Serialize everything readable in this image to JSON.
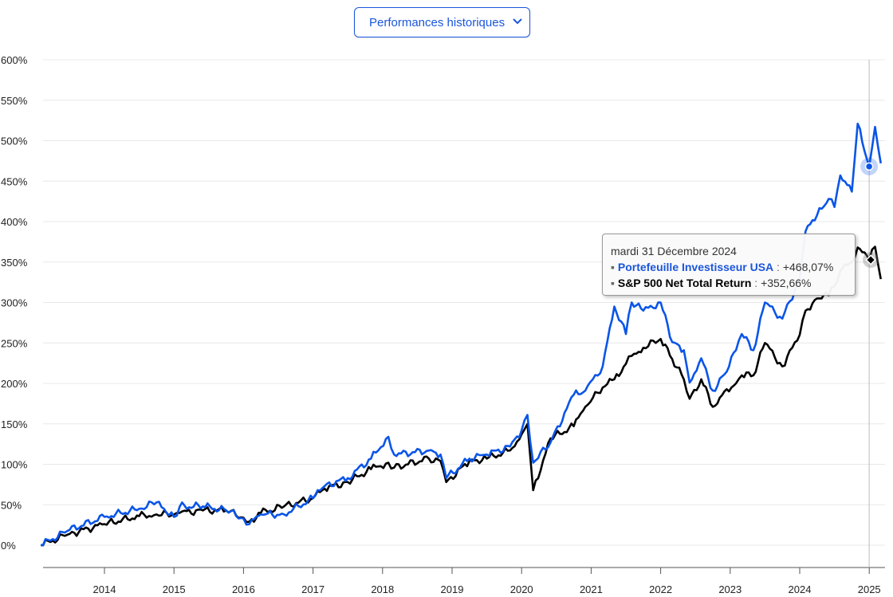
{
  "selector": {
    "selected": "Performances historiques",
    "icon": "chevron-down-icon"
  },
  "chart_data": {
    "type": "line",
    "title": "",
    "xlabel": "",
    "ylabel": "",
    "ylim": [
      -25,
      600
    ],
    "yticks": [
      "0%",
      "50%",
      "100%",
      "150%",
      "200%",
      "250%",
      "300%",
      "350%",
      "400%",
      "450%",
      "500%",
      "550%",
      "600%"
    ],
    "ytick_values": [
      0,
      50,
      100,
      150,
      200,
      250,
      300,
      350,
      400,
      450,
      500,
      550,
      600
    ],
    "xticks": [
      "2014",
      "2015",
      "2016",
      "2017",
      "2018",
      "2019",
      "2020",
      "2021",
      "2022",
      "2023",
      "2024",
      "2025"
    ],
    "xlim": [
      "2013-02",
      "2025-03"
    ],
    "grid": true,
    "x": [
      "2013-02",
      "2013-07",
      "2014-01",
      "2014-07",
      "2014-10",
      "2015-01",
      "2015-02",
      "2015-06",
      "2015-10",
      "2016-01",
      "2016-02",
      "2016-04",
      "2016-08",
      "2017-01",
      "2017-03",
      "2017-07",
      "2017-11",
      "2018-02",
      "2018-03",
      "2018-09",
      "2018-11",
      "2018-12",
      "2019-04",
      "2019-07",
      "2019-11",
      "2020-01",
      "2020-02",
      "2020-03",
      "2020-06",
      "2020-10",
      "2020-12",
      "2021-03",
      "2021-05",
      "2021-07",
      "2021-08",
      "2021-10",
      "2022-01",
      "2022-03",
      "2022-05",
      "2022-06",
      "2022-08",
      "2022-10",
      "2022-12",
      "2023-02",
      "2023-03",
      "2023-05",
      "2023-07",
      "2023-10",
      "2024-01",
      "2024-02",
      "2024-04",
      "2024-06",
      "2024-07",
      "2024-08",
      "2024-10",
      "2024-11",
      "2024-12-31",
      "2025-02",
      "2025-03"
    ],
    "series": [
      {
        "name": "Portefeuille Investisseur USA",
        "color": "#0a55e8",
        "values": [
          0,
          19,
          35,
          45,
          53,
          35,
          48,
          48,
          43,
          33,
          26,
          38,
          38,
          58,
          73,
          83,
          107,
          134,
          112,
          117,
          112,
          83,
          107,
          112,
          122,
          142,
          161,
          102,
          127,
          186,
          191,
          221,
          295,
          261,
          300,
          290,
          300,
          251,
          241,
          201,
          231,
          191,
          211,
          241,
          261,
          241,
          300,
          280,
          330,
          388,
          408,
          428,
          418,
          457,
          437,
          521,
          468.07,
          517,
          472
        ]
      },
      {
        "name": "S&P 500 Net Total Return",
        "color": "#000000",
        "values": [
          0,
          14,
          26,
          36,
          38,
          38,
          40,
          43,
          43,
          34,
          29,
          40,
          48,
          58,
          70,
          78,
          94,
          102,
          96,
          107,
          104,
          78,
          104,
          107,
          117,
          137,
          150,
          68,
          132,
          147,
          171,
          195,
          205,
          224,
          234,
          244,
          255,
          230,
          205,
          181,
          205,
          171,
          190,
          200,
          210,
          210,
          250,
          221,
          260,
          290,
          305,
          309,
          320,
          339,
          350,
          368,
          352.66,
          369,
          329
        ]
      }
    ],
    "tooltip": {
      "date": "mardi 31 Décembre 2024",
      "rows": [
        {
          "series": "Portefeuille Investisseur USA",
          "value": "+468,07%"
        },
        {
          "series": "S&P 500 Net Total Return",
          "value": "+352,66%"
        }
      ],
      "highlight_x": "2024-12-31"
    }
  }
}
